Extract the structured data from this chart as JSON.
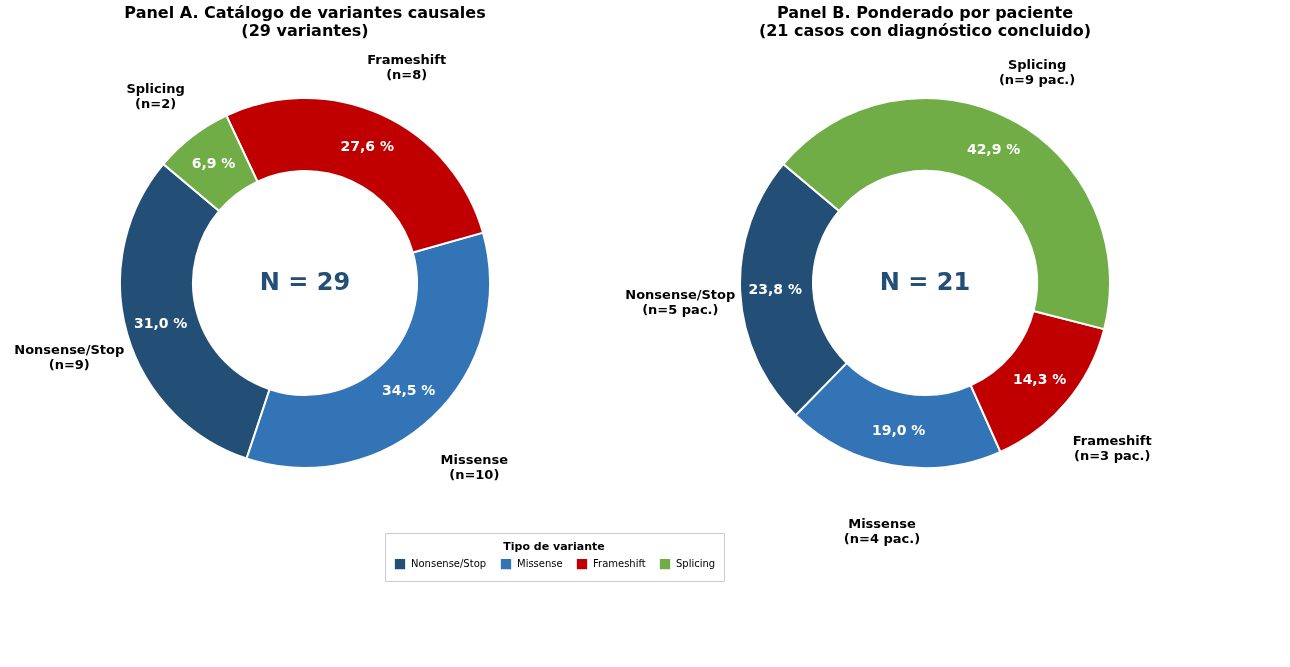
{
  "chart_data": [
    {
      "type": "donut",
      "title": "Panel A. Catálogo de variantes causales\n(29 variantes)",
      "legend_title": "Tipo de variante",
      "legend": "bottom",
      "categories": [
        "Nonsense/Stop",
        "Missense",
        "Frameshift",
        "Splicing"
      ],
      "values": [
        31.0,
        34.5,
        27.6,
        6.9
      ],
      "colors": [
        "#234f77",
        "#3274b5",
        "#c00000",
        "#70ad47"
      ],
      "value_labels": [
        "31,0 %",
        "34,5 %",
        "27,6 %",
        "6,9 %"
      ],
      "annotations": [
        "N = 29",
        "(n=9)",
        "(n=10)",
        "(n=8)",
        "(n=2)"
      ]
    },
    {
      "type": "donut",
      "title": "Panel B. Ponderado por paciente\n(21 casos con diagnóstico concluido)",
      "categories": [
        "Nonsense/Stop",
        "Missense",
        "Frameshift",
        "Splicing"
      ],
      "values": [
        23.8,
        19.0,
        14.3,
        42.9
      ],
      "colors": [
        "#234f77",
        "#3274b5",
        "#c00000",
        "#70ad47"
      ],
      "value_labels": [
        "23,8 %",
        "19,0 %",
        "14,3 %",
        "42,9 %"
      ],
      "annotations": [
        "N = 21",
        "(n=5 pac.)",
        "(n=4 pac.)",
        "(n=3 pac.)",
        "(n=9 pac.)"
      ]
    }
  ]
}
